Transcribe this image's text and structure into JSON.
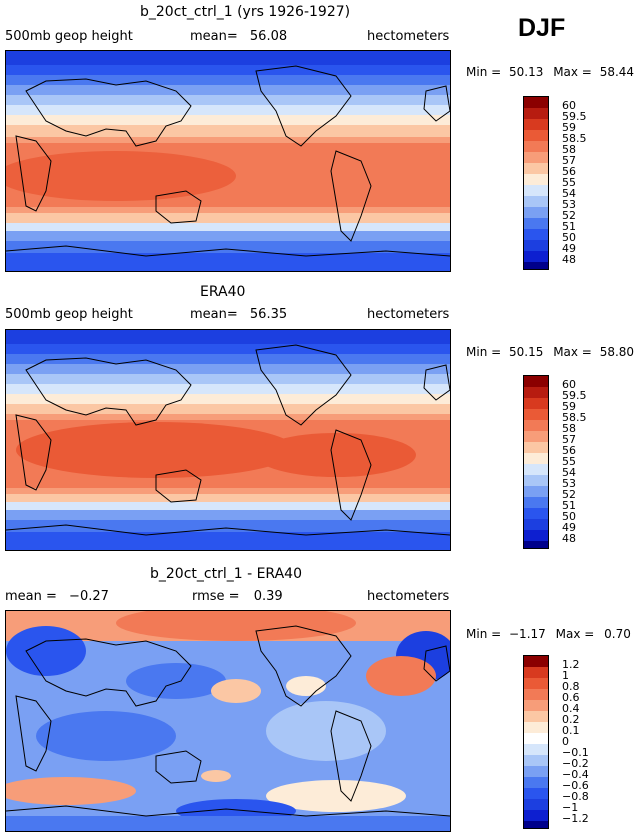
{
  "season": "DJF",
  "colors": {
    "abs": [
      "#00008b",
      "#0d1fd0",
      "#1c3fe0",
      "#2a55ee",
      "#4a78f0",
      "#7aa0f3",
      "#a9c6f7",
      "#d6e6fb",
      "#fdecd8",
      "#fbc7a4",
      "#f79d79",
      "#f27a56",
      "#ea5a36",
      "#d83a1f",
      "#b71c10",
      "#8b0000"
    ],
    "diff": [
      "#00008b",
      "#0d1fd0",
      "#1c3fe0",
      "#2a55ee",
      "#4a78f0",
      "#7aa0f3",
      "#a9c6f7",
      "#d6e6fb",
      "#ffffff",
      "#fdecd8",
      "#fbc7a4",
      "#f79d79",
      "#f27a56",
      "#ea5a36",
      "#d83a1f",
      "#8b0000"
    ]
  },
  "panels": [
    {
      "title": "b_20ct_ctrl_1 (yrs 1926-1927)",
      "left_label": "500mb geop height",
      "mean_label": "mean=",
      "mean_value": "56.08",
      "units": "hectometers",
      "min_label": "Min =",
      "min_value": "50.13",
      "max_label": "Max =",
      "max_value": "58.44",
      "colorbar_labels": [
        "60",
        "59.5",
        "59",
        "58.5",
        "58",
        "57",
        "56",
        "55",
        "54",
        "53",
        "52",
        "51",
        "50",
        "49",
        "48"
      ]
    },
    {
      "title": "ERA40",
      "left_label": "500mb geop height",
      "mean_label": "mean=",
      "mean_value": "56.35",
      "units": "hectometers",
      "min_label": "Min =",
      "min_value": "50.15",
      "max_label": "Max =",
      "max_value": "58.80",
      "colorbar_labels": [
        "60",
        "59.5",
        "59",
        "58.5",
        "58",
        "57",
        "56",
        "55",
        "54",
        "53",
        "52",
        "51",
        "50",
        "49",
        "48"
      ]
    },
    {
      "title": "b_20ct_ctrl_1 - ERA40",
      "mean_label": "mean =",
      "mean_value": "−0.27",
      "rmse_label": "rmse =",
      "rmse_value": "0.39",
      "units": "hectometers",
      "min_label": "Min =",
      "min_value": "−1.17",
      "max_label": "Max =",
      "max_value": "0.70",
      "colorbar_labels": [
        "1.2",
        "1",
        "0.8",
        "0.6",
        "0.4",
        "0.2",
        "0.1",
        "0",
        "−0.1",
        "−0.2",
        "−0.4",
        "−0.6",
        "−0.8",
        "−1",
        "−1.2"
      ]
    }
  ]
}
